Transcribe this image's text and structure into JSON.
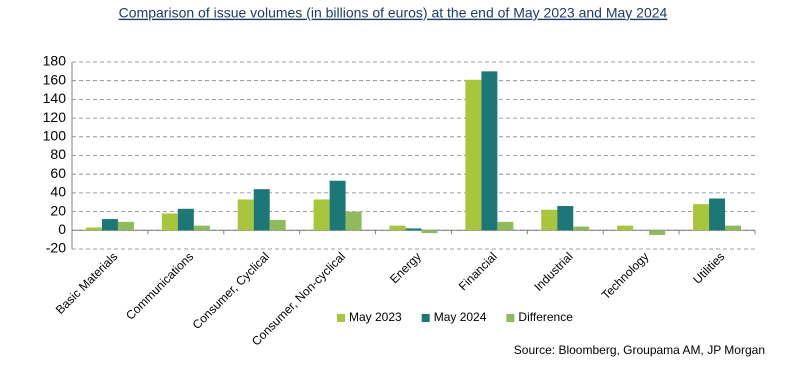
{
  "chart_data": {
    "type": "bar",
    "title": "Comparison of issue volumes (in billions of euros) at the end of May 2023 and May 2024",
    "source": "Source: Bloomberg, Groupama AM, JP Morgan",
    "categories": [
      "Basic Materials",
      "Communications",
      "Consumer, Cyclical",
      "Consumer, Non-cyclical",
      "Energy",
      "Financial",
      "Industrial",
      "Technology",
      "Utilities"
    ],
    "series": [
      {
        "name": "May 2023",
        "color": "#a9c53c",
        "values": [
          3,
          18,
          33,
          33,
          5,
          161,
          22,
          5,
          28
        ]
      },
      {
        "name": "May 2024",
        "color": "#1d7777",
        "values": [
          12,
          23,
          44,
          53,
          2,
          170,
          26,
          0,
          34
        ]
      },
      {
        "name": "Difference",
        "color": "#8fbb5c",
        "values": [
          9,
          5,
          11,
          20,
          -3,
          9,
          4,
          -5,
          5
        ]
      }
    ],
    "ylim": [
      -20,
      180
    ],
    "yticks": [
      -20,
      0,
      20,
      40,
      60,
      80,
      100,
      120,
      140,
      160,
      180
    ],
    "grid": true,
    "legend": "bottom"
  }
}
